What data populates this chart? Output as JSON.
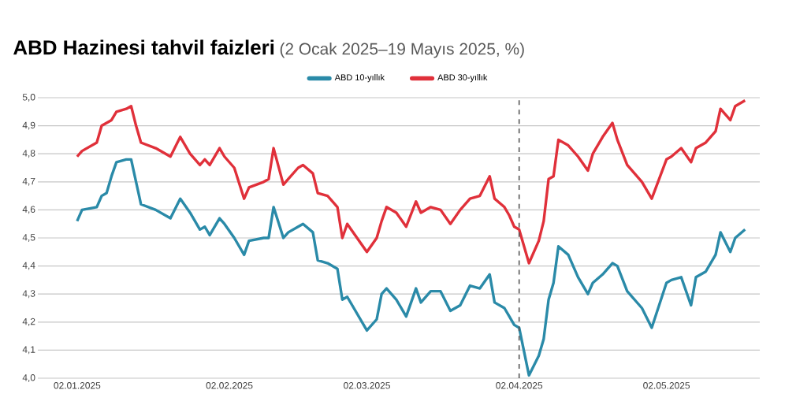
{
  "chart_data": {
    "type": "line",
    "title": "ABD Hazinesi tahvil faizleri",
    "subtitle": "(2 Ocak 2025–19 Mayıs 2025, %)",
    "x": [
      "2025-01-02",
      "2025-01-03",
      "2025-01-06",
      "2025-01-07",
      "2025-01-08",
      "2025-01-09",
      "2025-01-10",
      "2025-01-12",
      "2025-01-13",
      "2025-01-14",
      "2025-01-15",
      "2025-01-18",
      "2025-01-21",
      "2025-01-23",
      "2025-01-25",
      "2025-01-27",
      "2025-01-28",
      "2025-01-29",
      "2025-01-31",
      "2025-02-01",
      "2025-02-03",
      "2025-02-05",
      "2025-02-06",
      "2025-02-09",
      "2025-02-10",
      "2025-02-11",
      "2025-02-13",
      "2025-02-14",
      "2025-02-16",
      "2025-02-17",
      "2025-02-19",
      "2025-02-20",
      "2025-02-22",
      "2025-02-24",
      "2025-02-25",
      "2025-02-26",
      "2025-02-28",
      "2025-03-02",
      "2025-03-04",
      "2025-03-05",
      "2025-03-06",
      "2025-03-08",
      "2025-03-10",
      "2025-03-12",
      "2025-03-13",
      "2025-03-15",
      "2025-03-17",
      "2025-03-19",
      "2025-03-21",
      "2025-03-23",
      "2025-03-25",
      "2025-03-27",
      "2025-03-28",
      "2025-03-30",
      "2025-03-31",
      "2025-04-01",
      "2025-04-02",
      "2025-04-04",
      "2025-04-06",
      "2025-04-07",
      "2025-04-08",
      "2025-04-09",
      "2025-04-10",
      "2025-04-12",
      "2025-04-14",
      "2025-04-16",
      "2025-04-17",
      "2025-04-19",
      "2025-04-21",
      "2025-04-22",
      "2025-04-24",
      "2025-04-27",
      "2025-04-29",
      "2025-05-02",
      "2025-05-03",
      "2025-05-05",
      "2025-05-07",
      "2025-05-08",
      "2025-05-10",
      "2025-05-12",
      "2025-05-13",
      "2025-05-15",
      "2025-05-16",
      "2025-05-18"
    ],
    "series": [
      {
        "name": "ABD 10-yıllık",
        "color": "#2a8aa8",
        "values": [
          4.56,
          4.6,
          4.61,
          4.65,
          4.66,
          4.72,
          4.77,
          4.78,
          4.78,
          4.7,
          4.62,
          4.6,
          4.57,
          4.64,
          4.59,
          4.53,
          4.54,
          4.51,
          4.57,
          4.55,
          4.5,
          4.44,
          4.49,
          4.5,
          4.5,
          4.61,
          4.5,
          4.52,
          4.54,
          4.55,
          4.52,
          4.42,
          4.41,
          4.39,
          4.28,
          4.29,
          4.23,
          4.17,
          4.21,
          4.3,
          4.32,
          4.28,
          4.22,
          4.32,
          4.27,
          4.31,
          4.31,
          4.24,
          4.26,
          4.33,
          4.32,
          4.37,
          4.27,
          4.25,
          4.22,
          4.19,
          4.18,
          4.01,
          4.08,
          4.14,
          4.28,
          4.34,
          4.47,
          4.44,
          4.36,
          4.3,
          4.34,
          4.37,
          4.41,
          4.4,
          4.31,
          4.25,
          4.18,
          4.34,
          4.35,
          4.36,
          4.26,
          4.36,
          4.38,
          4.44,
          4.52,
          4.45,
          4.5,
          4.53
        ]
      },
      {
        "name": "ABD 30-yıllık",
        "color": "#e0303a",
        "values": [
          4.79,
          4.81,
          4.84,
          4.9,
          4.91,
          4.92,
          4.95,
          4.96,
          4.97,
          4.9,
          4.84,
          4.82,
          4.79,
          4.86,
          4.8,
          4.76,
          4.78,
          4.76,
          4.82,
          4.79,
          4.75,
          4.64,
          4.68,
          4.7,
          4.71,
          4.82,
          4.69,
          4.71,
          4.75,
          4.76,
          4.73,
          4.66,
          4.65,
          4.61,
          4.5,
          4.55,
          4.5,
          4.45,
          4.5,
          4.56,
          4.61,
          4.59,
          4.54,
          4.63,
          4.59,
          4.61,
          4.6,
          4.55,
          4.6,
          4.64,
          4.65,
          4.72,
          4.64,
          4.61,
          4.58,
          4.54,
          4.53,
          4.41,
          4.49,
          4.56,
          4.71,
          4.72,
          4.85,
          4.83,
          4.79,
          4.74,
          4.8,
          4.86,
          4.91,
          4.85,
          4.76,
          4.7,
          4.64,
          4.78,
          4.79,
          4.82,
          4.77,
          4.82,
          4.84,
          4.88,
          4.96,
          4.92,
          4.97,
          4.99
        ]
      }
    ],
    "xlim": [
      "2024-12-25",
      "2025-05-21"
    ],
    "xticks": [
      {
        "value": "2025-01-02",
        "label": "02.01.2025"
      },
      {
        "value": "2025-02-02",
        "label": "02.02.2025"
      },
      {
        "value": "2025-03-02",
        "label": "02.03.2025"
      },
      {
        "value": "2025-04-02",
        "label": "02.04.2025"
      },
      {
        "value": "2025-05-02",
        "label": "02.05.2025"
      }
    ],
    "ylim": [
      4.0,
      5.0
    ],
    "yticks": [
      {
        "value": 4.0,
        "label": "4,0"
      },
      {
        "value": 4.1,
        "label": "4,1"
      },
      {
        "value": 4.2,
        "label": "4,2"
      },
      {
        "value": 4.3,
        "label": "4,3"
      },
      {
        "value": 4.4,
        "label": "4,4"
      },
      {
        "value": 4.5,
        "label": "4,5"
      },
      {
        "value": 4.6,
        "label": "4,6"
      },
      {
        "value": 4.7,
        "label": "4,7"
      },
      {
        "value": 4.8,
        "label": "4,8"
      },
      {
        "value": 4.9,
        "label": "4,9"
      },
      {
        "value": 5.0,
        "label": "5,0"
      }
    ],
    "ref_lines": [
      {
        "axis": "x",
        "value": "2025-04-02",
        "color": "#555555",
        "line_style": "dashed"
      }
    ],
    "grid": "y",
    "legend": "top",
    "marker": "none",
    "line_style": "solid"
  }
}
